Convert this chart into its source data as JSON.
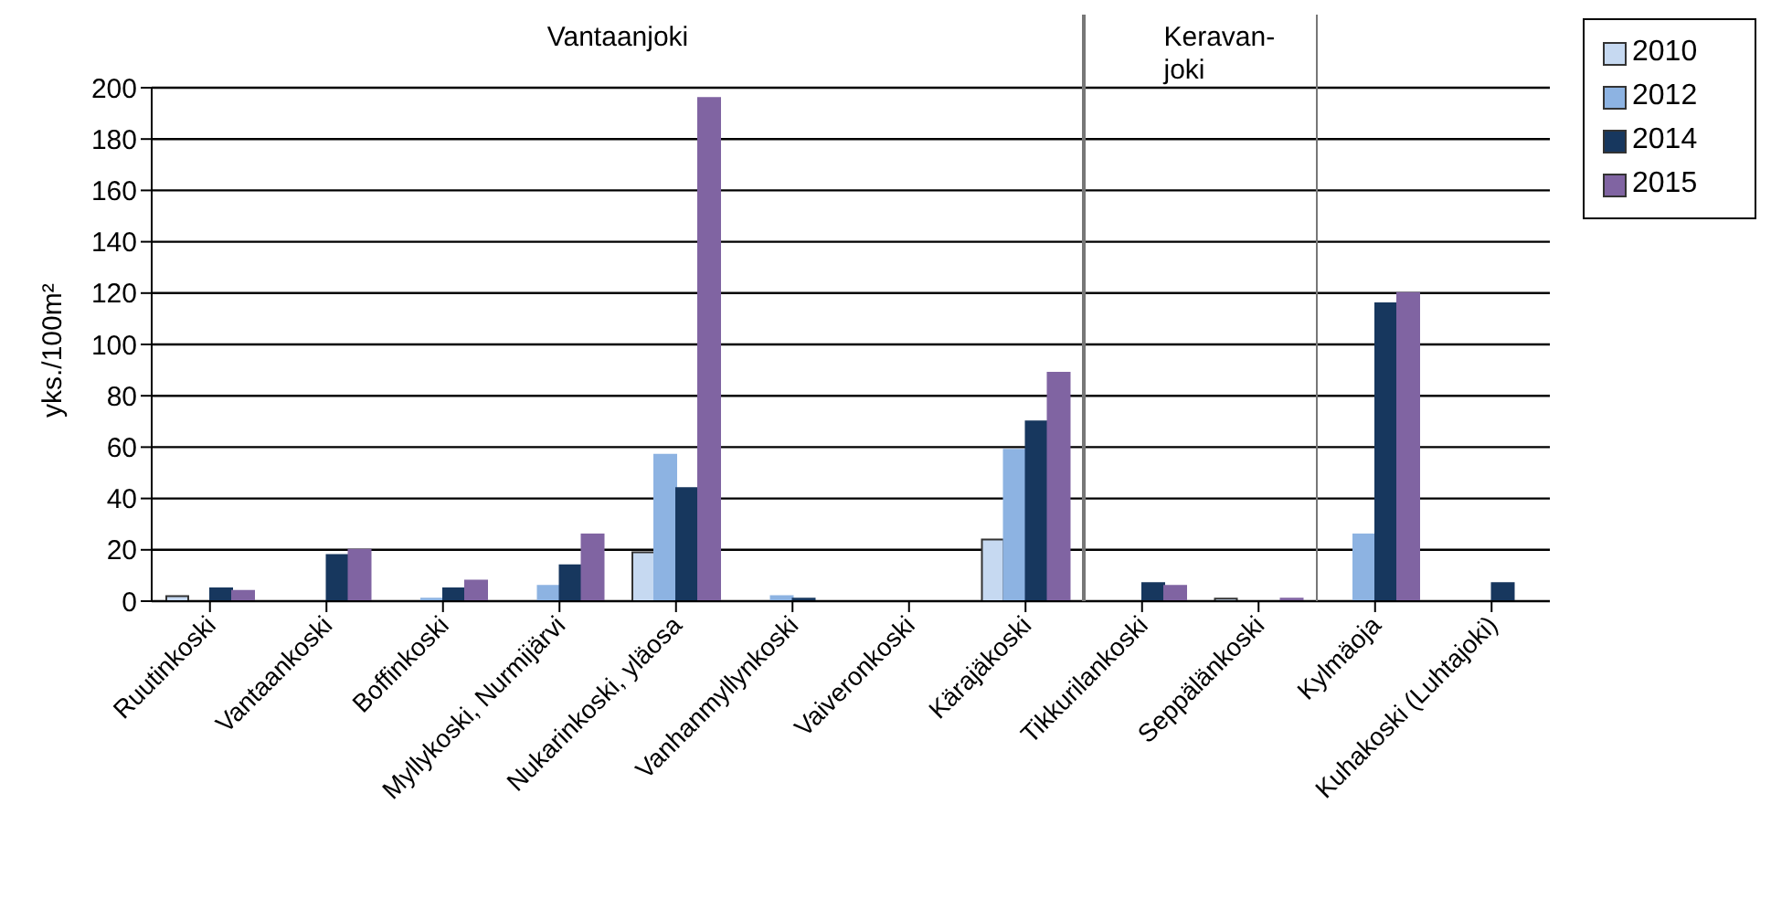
{
  "chart_data": {
    "type": "bar",
    "ylabel": "yks./100m²",
    "categories": [
      "Ruutinkoski",
      "Vantaankoski",
      "Boffinkoski",
      "Myllykoski, Nurmijärvi",
      "Nukarinkoski, yläosa",
      "Vanhanmyllynkoski",
      "Vaiveronkoski",
      "Kärajäkoski",
      "Tikkurilankoski",
      "Seppälänkoski",
      "Kylmäoja",
      "Kuhakoski (Luhtajoki)"
    ],
    "series": [
      {
        "name": "2010",
        "color": "#c6d9f1",
        "values": [
          2,
          null,
          null,
          null,
          19,
          null,
          null,
          24,
          null,
          1,
          null,
          null
        ]
      },
      {
        "name": "2012",
        "color": "#8db3e2",
        "values": [
          null,
          null,
          1,
          6,
          57,
          2,
          null,
          59,
          null,
          null,
          26,
          null
        ]
      },
      {
        "name": "2014",
        "color": "#17375e",
        "values": [
          5,
          18,
          5,
          14,
          44,
          1,
          null,
          70,
          7,
          null,
          116,
          7
        ]
      },
      {
        "name": "2015",
        "color": "#8064a2",
        "values": [
          4,
          20,
          8,
          26,
          196,
          null,
          null,
          89,
          6,
          1,
          120,
          null
        ]
      }
    ],
    "ylim": [
      0,
      200
    ],
    "yticks": [
      0,
      20,
      40,
      60,
      80,
      100,
      120,
      140,
      160,
      180,
      200
    ],
    "grid": "y",
    "legend": "top right",
    "annotations": [
      "Vantaanjoki",
      "Keravan-\njoki"
    ]
  }
}
